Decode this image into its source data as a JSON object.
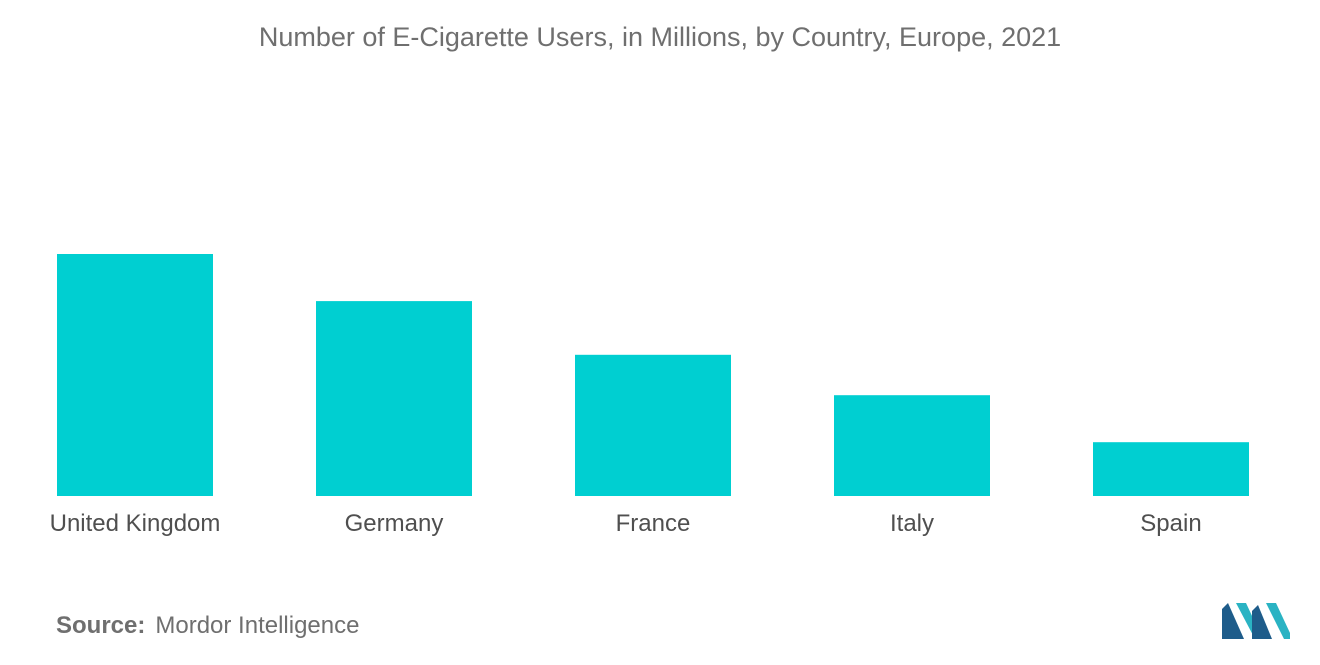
{
  "chart_data": {
    "type": "bar",
    "title": "Number of E-Cigarette Users, in Millions, by Country, Europe, 2021",
    "categories": [
      "United Kingdom",
      "Germany",
      "France",
      "Italy",
      "Spain"
    ],
    "values": [
      3.6,
      2.9,
      2.1,
      1.5,
      0.8
    ],
    "ylim": [
      0,
      3.6
    ],
    "xlabel": "",
    "ylabel": "",
    "grid": false,
    "legend": "none",
    "bar_color": "#00cfd1"
  },
  "source": {
    "label": "Source:",
    "value": "Mordor Intelligence"
  },
  "logo": {
    "icon": "mordor-intelligence-logo-icon",
    "colors": [
      "#1e5c8a",
      "#2ab3c3"
    ]
  }
}
